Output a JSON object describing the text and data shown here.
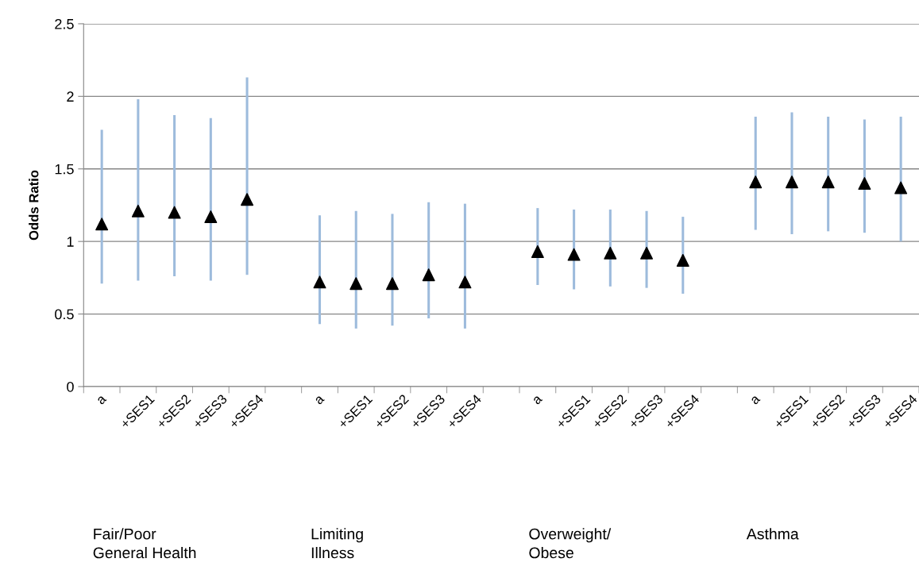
{
  "chart_data": {
    "type": "scatter",
    "ylabel": "Odds Ratio",
    "categories": [
      "a",
      "+SES1",
      "+SES2",
      "+SES3",
      "+SES4",
      null,
      "a",
      "+SES1",
      "+SES2",
      "+SES3",
      "+SES4",
      null,
      "a",
      "+SES1",
      "+SES2",
      "+SES3",
      "+SES4",
      null,
      "a",
      "+SES1",
      "+SES2",
      "+SES3",
      "+SES4"
    ],
    "series": [
      {
        "color": "#000000",
        "values": [
          1.12,
          1.21,
          1.2,
          1.17,
          1.29,
          null,
          0.72,
          0.71,
          0.71,
          0.77,
          0.72,
          null,
          0.93,
          0.91,
          0.92,
          0.92,
          0.87,
          null,
          1.41,
          1.41,
          1.41,
          1.4,
          1.37
        ],
        "errors": [
          [
            0.71,
            1.77
          ],
          [
            0.73,
            1.98
          ],
          [
            0.76,
            1.87
          ],
          [
            0.73,
            1.85
          ],
          [
            0.77,
            2.13
          ],
          null,
          [
            0.43,
            1.18
          ],
          [
            0.4,
            1.21
          ],
          [
            0.42,
            1.19
          ],
          [
            0.47,
            1.27
          ],
          [
            0.4,
            1.26
          ],
          null,
          [
            0.7,
            1.23
          ],
          [
            0.67,
            1.22
          ],
          [
            0.69,
            1.22
          ],
          [
            0.68,
            1.21
          ],
          [
            0.64,
            1.17
          ],
          null,
          [
            1.08,
            1.86
          ],
          [
            1.05,
            1.89
          ],
          [
            1.07,
            1.86
          ],
          [
            1.06,
            1.84
          ],
          [
            1.0,
            1.86
          ]
        ]
      }
    ],
    "ylim": [
      0,
      2.5
    ],
    "yticks": [
      0,
      0.5,
      1,
      1.5,
      2,
      2.5
    ],
    "grid": "y",
    "marker": "triangle",
    "legend": false,
    "annotations": [
      "Fair/Poor\nGeneral Health",
      "Limiting\nIllness",
      "Overweight/\nObese",
      "Asthma"
    ]
  }
}
